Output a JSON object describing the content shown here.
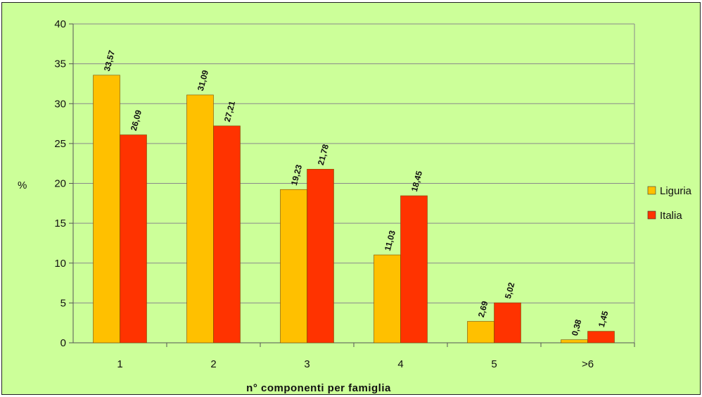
{
  "chart_data": {
    "type": "bar",
    "categories": [
      "1",
      "2",
      "3",
      "4",
      "5",
      ">6"
    ],
    "series": [
      {
        "name": "Liguria",
        "values": [
          33.57,
          31.09,
          19.23,
          11.03,
          2.69,
          0.38
        ],
        "labels": [
          "33,57",
          "31,09",
          "19,23",
          "11,03",
          "2,69",
          "0,38"
        ],
        "color": "#ffc000"
      },
      {
        "name": "Italia",
        "values": [
          26.09,
          27.21,
          21.78,
          18.45,
          5.02,
          1.45
        ],
        "labels": [
          "26,09",
          "27,21",
          "21,78",
          "18,45",
          "5,02",
          "1,45"
        ],
        "color": "#ff3300"
      }
    ],
    "title": "",
    "xlabel": "n° componenti per famiglia",
    "ylabel": "%",
    "ylim": [
      0,
      40
    ],
    "yticks": [
      "0",
      "5",
      "10",
      "15",
      "20",
      "25",
      "30",
      "35",
      "40"
    ],
    "grid": true,
    "legend_position": "right",
    "plot_background": "#ccff99"
  }
}
